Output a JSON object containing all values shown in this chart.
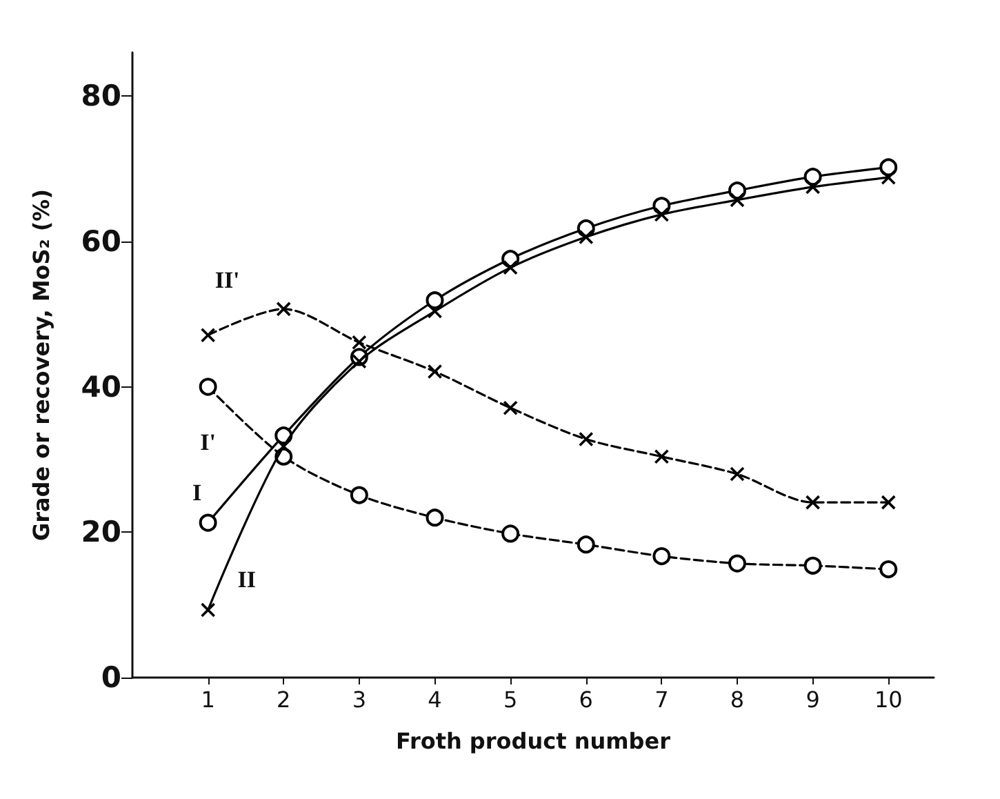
{
  "chart_data": {
    "type": "line",
    "xlabel": "Froth product number",
    "ylabel": "Grade or recovery, MoS₂ (%)",
    "x": [
      1,
      2,
      3,
      4,
      5,
      6,
      7,
      8,
      9,
      10
    ],
    "series": [
      {
        "name": "I",
        "color": "#000000",
        "marker": "circle",
        "line_style": "solid",
        "values": [
          21.3,
          33.3,
          44.1,
          51.9,
          57.6,
          61.8,
          64.9,
          67.0,
          68.9,
          70.2
        ]
      },
      {
        "name": "II",
        "color": "#000000",
        "marker": "cross",
        "line_style": "solid",
        "values": [
          9.3,
          31.8,
          43.5,
          50.4,
          56.4,
          60.6,
          63.7,
          65.7,
          67.5,
          68.8
        ]
      },
      {
        "name": "I'",
        "color": "#000000",
        "marker": "circle",
        "line_style": "dashed",
        "values": [
          40.0,
          30.4,
          25.1,
          22.0,
          19.8,
          18.3,
          16.7,
          15.7,
          15.4,
          14.9
        ]
      },
      {
        "name": "II'",
        "color": "#000000",
        "marker": "cross",
        "line_style": "dashed",
        "values": [
          47.1,
          50.7,
          46.1,
          42.1,
          37.1,
          32.8,
          30.4,
          28.0,
          24.1,
          24.1
        ]
      }
    ],
    "xlim": [
      0,
      10.6
    ],
    "xticks": [
      1,
      2,
      3,
      4,
      5,
      6,
      7,
      8,
      9,
      10
    ],
    "ylim": [
      0,
      86
    ],
    "yticks": [
      0,
      20,
      40,
      60,
      80
    ],
    "grid": false,
    "legend": false
  }
}
